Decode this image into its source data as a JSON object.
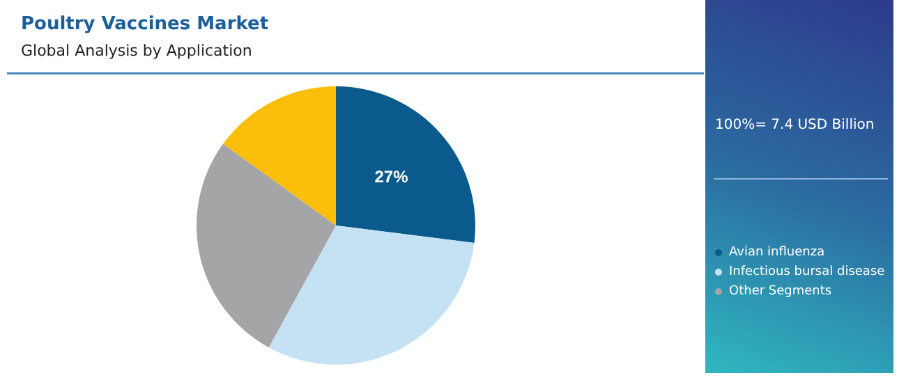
{
  "chart_data": {
    "type": "pie",
    "title": "Poultry Vaccines Market",
    "subtitle": "Global Analysis by Application",
    "categories": [
      "Avian influenza",
      "Infectious bursal disease",
      "Other Segments",
      null
    ],
    "values": [
      27,
      31,
      27,
      15
    ],
    "colors": [
      "#0b5a8e",
      "#c4e2f4",
      "#a5a4a6",
      "#fbbf0b"
    ],
    "value_labels": [
      "27%",
      null,
      null,
      null
    ],
    "annotations": [
      "100%= 7.4 USD Billion"
    ],
    "legend": "right"
  }
}
